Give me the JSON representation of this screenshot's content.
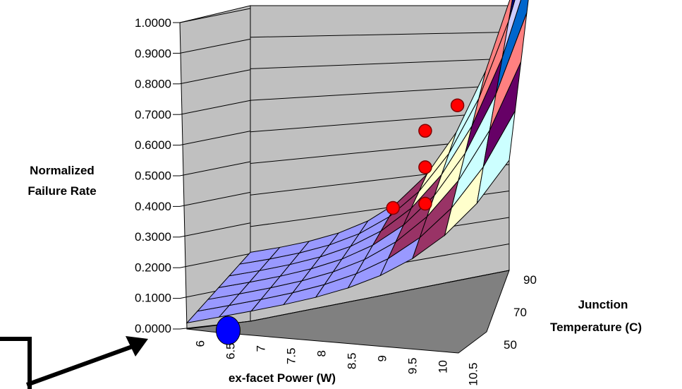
{
  "chart_data": {
    "type": "surface",
    "ylabel": "Normalized Failure Rate",
    "xlabel": "ex-facet Power (W)",
    "zlabel": "Junction Temperature (C)",
    "y_ticks": [
      "1.0000",
      "0.9000",
      "0.8000",
      "0.7000",
      "0.6000",
      "0.5000",
      "0.4000",
      "0.3000",
      "0.2000",
      "0.1000",
      "0.0000"
    ],
    "x_ticks": [
      "6",
      "6.5",
      "7",
      "7.5",
      "8",
      "8.5",
      "9",
      "9.5",
      "10",
      "10.5"
    ],
    "z_ticks": [
      "90",
      "70",
      "50"
    ],
    "ylim": [
      0,
      1
    ],
    "band_colors": [
      "#9999ff",
      "#993366",
      "#ffffcc",
      "#ccffff",
      "#660066",
      "#ff8080",
      "#0066cc",
      "#ccccff",
      "#000080",
      "#ff00ff"
    ],
    "highlight_points": [
      {
        "x": 9.0,
        "y": 0.35
      },
      {
        "x": 9.5,
        "y": 0.35
      },
      {
        "x": 9.5,
        "y": 0.47
      },
      {
        "x": 9.5,
        "y": 0.59
      },
      {
        "x": 10.0,
        "y": 0.66
      }
    ],
    "reference_point": {
      "x": 6.5,
      "y": 0.0
    }
  },
  "colors": {
    "wall": "#c0c0c0",
    "floor": "#808080",
    "point": "#ff0000",
    "reference": "#0000ff"
  }
}
